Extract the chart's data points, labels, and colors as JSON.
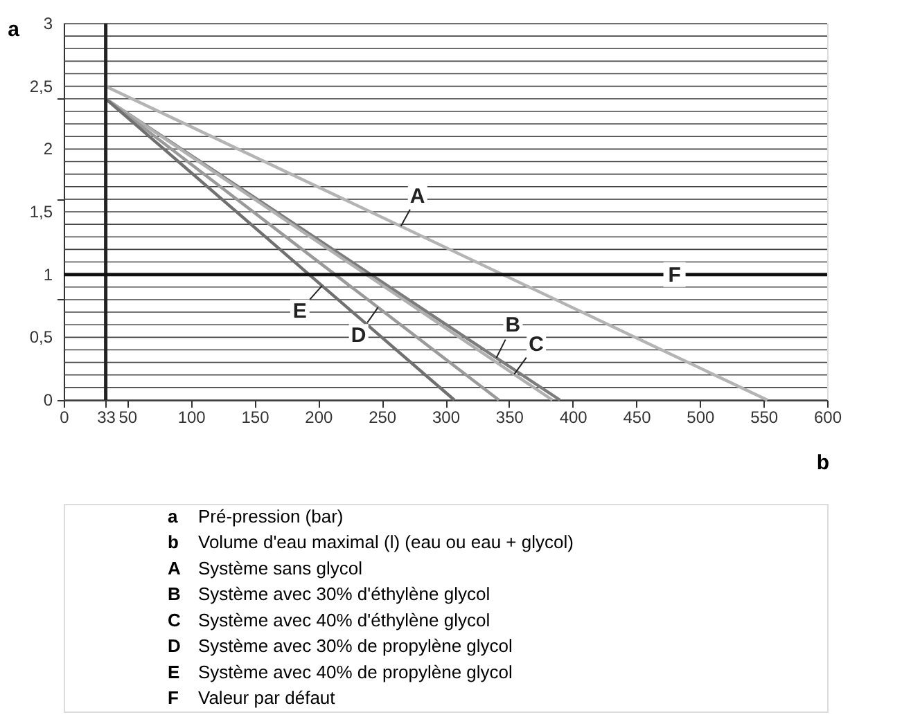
{
  "chart_data": {
    "type": "line",
    "xlabel": "b",
    "ylabel": "a",
    "series": [
      {
        "color": "#b4b4b4",
        "x": [
          33,
          553
        ],
        "values": [
          2.5,
          0
        ]
      },
      {
        "color": "#7c7c7c",
        "x": [
          33,
          390
        ],
        "values": [
          2.4,
          0
        ]
      },
      {
        "color": "#b0b0b0",
        "x": [
          33,
          384
        ],
        "values": [
          2.4,
          0
        ]
      },
      {
        "color": "#9a9a9a",
        "x": [
          33,
          342
        ],
        "values": [
          2.4,
          0
        ]
      },
      {
        "color": "#707070",
        "x": [
          33,
          307
        ],
        "values": [
          2.4,
          0
        ]
      }
    ],
    "xlim": [
      0,
      600
    ],
    "ylim": [
      0,
      3
    ],
    "xticks": [
      0,
      33,
      50,
      100,
      150,
      200,
      250,
      300,
      350,
      400,
      450,
      500,
      550,
      600
    ],
    "yticks": [
      0,
      {
        "value": 0.1,
        "label": null
      },
      {
        "value": 0.2,
        "label": null
      },
      {
        "value": 0.3,
        "label": null
      },
      {
        "value": 0.4,
        "label": null
      },
      {
        "value": 0.5,
        "label": "0,5"
      },
      {
        "value": 0.6,
        "label": null
      },
      {
        "value": 0.7,
        "label": null
      },
      {
        "value": 0.8,
        "label": null
      },
      {
        "value": 0.9,
        "label": null
      },
      1,
      {
        "value": 1.1,
        "label": null
      },
      {
        "value": 1.2,
        "label": null
      },
      {
        "value": 1.3,
        "label": null
      },
      {
        "value": 1.4,
        "label": null
      },
      {
        "value": 1.5,
        "label": "1,5"
      },
      {
        "value": 1.6,
        "label": null
      },
      {
        "value": 1.7,
        "label": null
      },
      {
        "value": 1.8,
        "label": null
      },
      {
        "value": 1.9,
        "label": null
      },
      2,
      {
        "value": 2.1,
        "label": null
      },
      {
        "value": 2.2,
        "label": null
      },
      {
        "value": 2.3,
        "label": null
      },
      {
        "value": 2.4,
        "label": null
      },
      {
        "value": 2.5,
        "label": "2,5"
      },
      {
        "value": 2.6,
        "label": null
      },
      {
        "value": 2.7,
        "label": null
      },
      {
        "value": 2.8,
        "label": null
      },
      {
        "value": 2.9,
        "label": null
      },
      3
    ],
    "grid": "y",
    "marker": "none",
    "line_style": "solid",
    "ref_lines": [
      {
        "axis": "x",
        "value": 33,
        "color": "#222222"
      },
      {
        "axis": "y",
        "value": 1,
        "color": "#111111",
        "label": "F"
      }
    ],
    "annotations": [
      {
        "text": "A",
        "x": 265,
        "y": 1.385
      },
      {
        "text": "B",
        "x": 340,
        "y": 0.336
      },
      {
        "text": "C",
        "x": 354,
        "y": 0.205
      },
      {
        "text": "D",
        "x": 247,
        "y": 0.738
      },
      {
        "text": "E",
        "x": 203,
        "y": 0.911
      },
      "a Pré-pression (bar)",
      "b Volume d'eau maximal (l) (eau ou eau + glycol)",
      "A Système sans glycol",
      "B Système avec 30% d'éthylène glycol",
      "C Système avec 40% d'éthylène glycol",
      "D Système avec 30% de propylène glycol",
      "E Système avec 40% de propylène glycol",
      "F Valeur par défaut"
    ]
  }
}
